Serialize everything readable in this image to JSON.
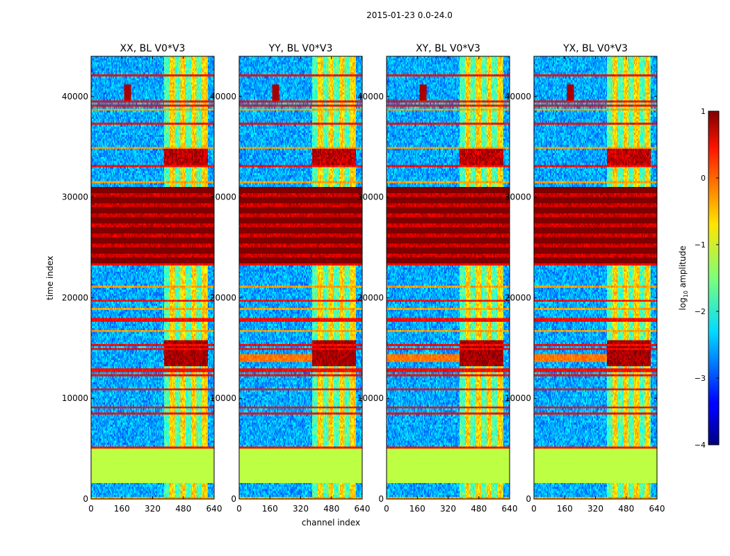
{
  "chart_data": {
    "type": "heatmap",
    "suptitle": "2015-01-23 0.0-24.0",
    "xlabel": "channel index",
    "ylabel": "time index",
    "xlim": [
      0,
      640
    ],
    "ylim": [
      0,
      44000
    ],
    "xticks": [
      0,
      160,
      320,
      480,
      640
    ],
    "yticks": [
      0,
      10000,
      20000,
      30000,
      40000
    ],
    "panels": [
      {
        "title": "XX, BL V0*V3"
      },
      {
        "title": "YY, BL V0*V3"
      },
      {
        "title": "XY, BL V0*V3"
      },
      {
        "title": "YX, BL V0*V3"
      }
    ],
    "colorbar": {
      "label_main": "log",
      "label_sub": "10",
      "label_rest": " amplitude",
      "range": [
        -4,
        1
      ],
      "ticks": [
        -4,
        -3,
        -2,
        -1,
        0,
        1
      ],
      "tick_labels": [
        "−4",
        "−3",
        "−2",
        "−1",
        "0",
        "1"
      ],
      "colormap": "jet"
    },
    "features": {
      "saturated_time_band": [
        23500,
        31000
      ],
      "flat_fill_time_band": [
        1600,
        4900
      ],
      "flat_fill_log_amplitude": -1.2,
      "bright_channel_band": [
        390,
        600
      ],
      "interference_time_band": [
        13200,
        15800
      ]
    }
  },
  "colors": {
    "background": "#ffffff",
    "axes": "#000000"
  }
}
